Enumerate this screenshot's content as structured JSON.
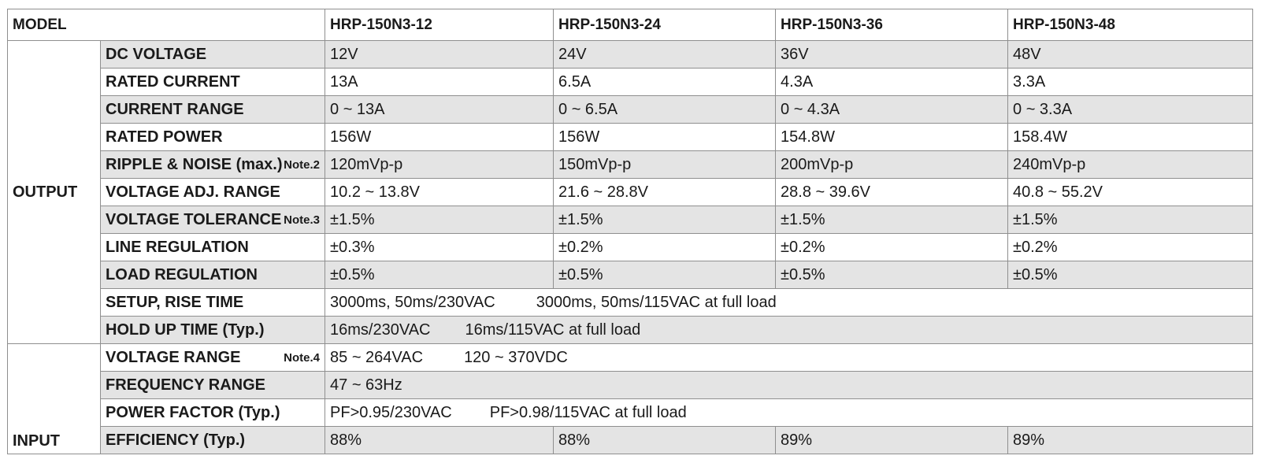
{
  "header": {
    "model_label": "MODEL",
    "models": [
      "HRP-150N3-12",
      "HRP-150N3-24",
      "HRP-150N3-36",
      "HRP-150N3-48"
    ]
  },
  "output": {
    "group_label": "OUTPUT",
    "dc_voltage": {
      "label": "DC VOLTAGE",
      "values": [
        "12V",
        "24V",
        "36V",
        "48V"
      ]
    },
    "rated_current": {
      "label": "RATED CURRENT",
      "values": [
        "13A",
        "6.5A",
        "4.3A",
        "3.3A"
      ]
    },
    "current_range": {
      "label": "CURRENT RANGE",
      "values": [
        "0 ~ 13A",
        "0 ~ 6.5A",
        "0 ~ 4.3A",
        "0 ~ 3.3A"
      ]
    },
    "rated_power": {
      "label": "RATED POWER",
      "values": [
        "156W",
        "156W",
        "154.8W",
        "158.4W"
      ]
    },
    "ripple_noise": {
      "label": "RIPPLE & NOISE (max.)",
      "note": "Note.2",
      "values": [
        "120mVp-p",
        "150mVp-p",
        "200mVp-p",
        "240mVp-p"
      ]
    },
    "voltage_adj": {
      "label": "VOLTAGE ADJ. RANGE",
      "values": [
        "10.2 ~ 13.8V",
        "21.6 ~ 28.8V",
        "28.8 ~ 39.6V",
        "40.8 ~ 55.2V"
      ]
    },
    "voltage_tolerance": {
      "label": "VOLTAGE TOLERANCE",
      "note": "Note.3",
      "values": [
        "±1.5%",
        "±1.5%",
        "±1.5%",
        "±1.5%"
      ]
    },
    "line_regulation": {
      "label": "LINE REGULATION",
      "values": [
        "±0.3%",
        "±0.2%",
        "±0.2%",
        "±0.2%"
      ]
    },
    "load_regulation": {
      "label": "LOAD REGULATION",
      "values": [
        "±0.5%",
        "±0.5%",
        "±0.5%",
        "±0.5%"
      ]
    },
    "setup_rise": {
      "label": "SETUP, RISE TIME",
      "value_a": "3000ms, 50ms/230VAC",
      "value_b": "3000ms, 50ms/115VAC at full load"
    },
    "hold_up": {
      "label": "HOLD UP TIME (Typ.)",
      "value_a": "16ms/230VAC",
      "value_b": "16ms/115VAC at full load"
    }
  },
  "input": {
    "group_label": "INPUT",
    "voltage_range": {
      "label": "VOLTAGE RANGE",
      "note": "Note.4",
      "value_a": "85 ~ 264VAC",
      "value_b": "120 ~ 370VDC"
    },
    "frequency_range": {
      "label": "FREQUENCY RANGE",
      "value": "47 ~ 63Hz"
    },
    "power_factor": {
      "label": "POWER FACTOR (Typ.)",
      "value_a": "PF>0.95/230VAC",
      "value_b": "PF>0.98/115VAC at full load"
    },
    "efficiency": {
      "label": "EFFICIENCY (Typ.)",
      "values": [
        "88%",
        "88%",
        "89%",
        "89%"
      ]
    }
  }
}
